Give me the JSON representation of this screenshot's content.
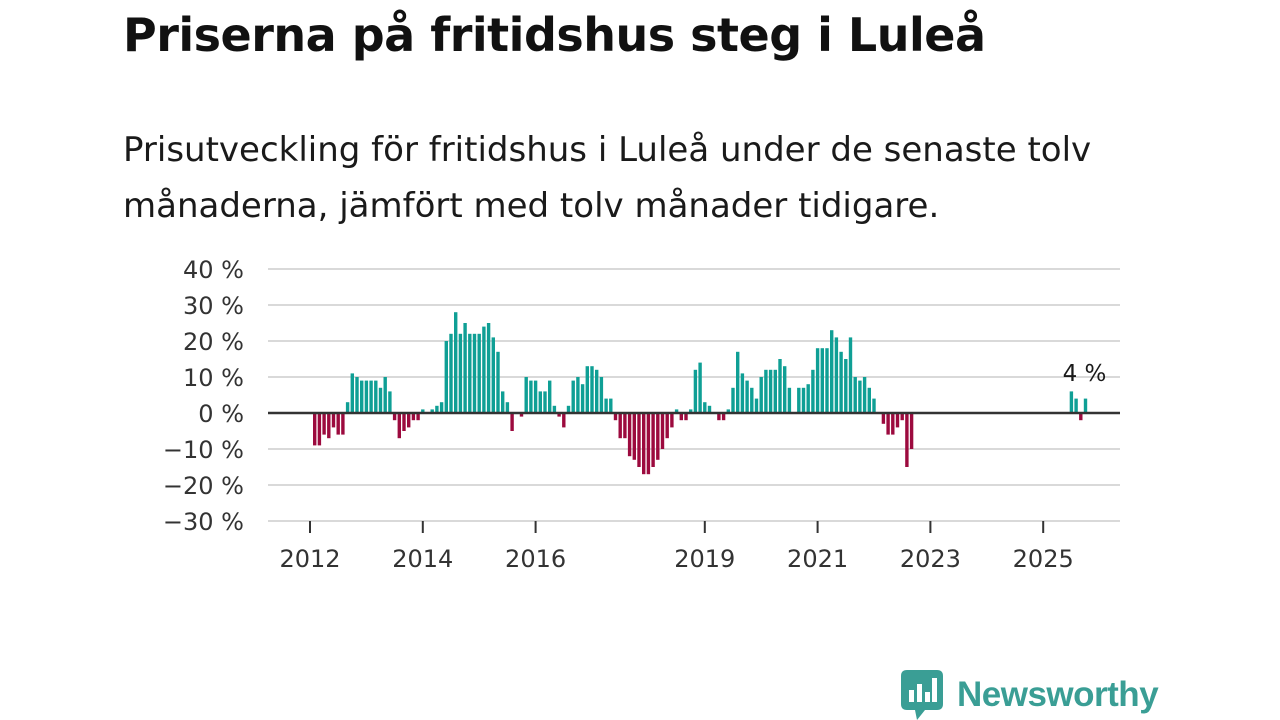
{
  "title": "Priserna på fritidshus steg i Luleå",
  "subtitle": "Prisutveckling för fritidshus i Luleå under de senaste tolv månaderna, jämfört med tolv månader tidigare.",
  "brand": {
    "name": "Newsworthy",
    "color": "#3a9e95"
  },
  "colors": {
    "positive": "#0f9f95",
    "negative": "#9c0a3e",
    "grid": "#d9d9d9",
    "zero": "#333333"
  },
  "chart_data": {
    "type": "bar",
    "title": "",
    "xlabel": "",
    "ylabel": "",
    "ylim": [
      -30,
      40
    ],
    "y_ticks": [
      40,
      30,
      20,
      10,
      0,
      -10,
      -20,
      -30
    ],
    "y_tick_labels": [
      "40 %",
      "30 %",
      "20 %",
      "10 %",
      "0 %",
      "−10 %",
      "−20 %",
      "−30 %"
    ],
    "x_tick_years": [
      2012,
      2014,
      2016,
      2019,
      2021,
      2023,
      2025
    ],
    "x_tick_labels": [
      "2012",
      "2014",
      "2016",
      "2019",
      "2021",
      "2023",
      "2025"
    ],
    "start": {
      "year": 2012,
      "month": 1
    },
    "end_label": "4 %",
    "values": [
      null,
      -9,
      -9,
      -6,
      -7,
      -4,
      -6,
      -6,
      3,
      11,
      10,
      9,
      9,
      9,
      9,
      7,
      10,
      6,
      -2,
      -7,
      -5,
      -4,
      -2,
      -2,
      1,
      0,
      1,
      2,
      3,
      20,
      22,
      28,
      22,
      25,
      22,
      22,
      22,
      24,
      25,
      21,
      17,
      6,
      3,
      -5,
      0,
      -1,
      10,
      9,
      9,
      6,
      6,
      9,
      2,
      -1,
      -4,
      2,
      9,
      10,
      8,
      13,
      13,
      12,
      10,
      4,
      4,
      -2,
      -7,
      -7,
      -12,
      -13,
      -15,
      -17,
      -17,
      -15,
      -13,
      -10,
      -7,
      -4,
      1,
      -2,
      -2,
      1,
      12,
      14,
      3,
      2,
      0,
      -2,
      -2,
      1,
      7,
      17,
      11,
      9,
      7,
      4,
      10,
      12,
      12,
      12,
      15,
      13,
      7,
      0,
      7,
      7,
      8,
      12,
      18,
      18,
      18,
      23,
      21,
      17,
      15,
      21,
      10,
      9,
      10,
      7,
      4,
      null,
      -3,
      -6,
      -6,
      -4,
      -2,
      -15,
      -10,
      null,
      null,
      null,
      null,
      null,
      null,
      null,
      null,
      null,
      null,
      null,
      null,
      null,
      null,
      null,
      null,
      null,
      null,
      null,
      null,
      null,
      null,
      null,
      null,
      null,
      null,
      null,
      null,
      null,
      null,
      null,
      null,
      null,
      6,
      4,
      -2,
      4
    ]
  }
}
